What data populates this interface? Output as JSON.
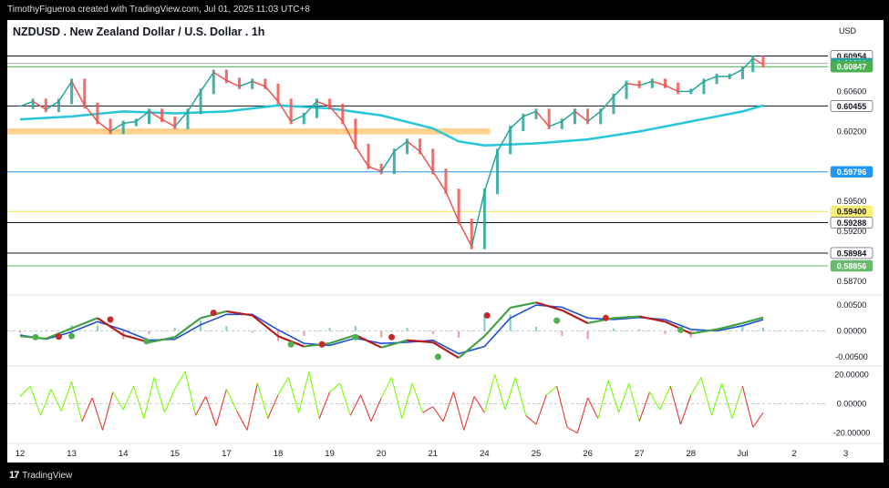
{
  "header": {
    "attribution": "TimothyFigueroa created with TradingView.com, Jul 01, 2025 11:03 UTC+8"
  },
  "footer": {
    "brand": "TradingView"
  },
  "chart_data": [
    {
      "type": "line",
      "title": "NZDUSD . New Zealand Dollar / U.S. Dollar . 1h",
      "currency": "USD",
      "x_ticks": [
        "12",
        "13",
        "14",
        "15",
        "17",
        "18",
        "19",
        "20",
        "21",
        "24",
        "25",
        "26",
        "27",
        "28",
        "Jul",
        "2",
        "3"
      ],
      "x_tick_pos": [
        0,
        1,
        2,
        3,
        4,
        5,
        6,
        7,
        8,
        9,
        10,
        11,
        12,
        13,
        14,
        15,
        16
      ],
      "ylim": [
        0.58574,
        0.61104
      ],
      "y_ticks": [
        "0.60600",
        "0.60200",
        "0.59500",
        "0.59200",
        "0.58700"
      ],
      "y_tick_values": [
        0.606,
        0.602,
        0.595,
        0.592,
        0.587
      ],
      "close_series": {
        "x": [
          0,
          0.25,
          0.5,
          0.75,
          1,
          1.25,
          1.5,
          1.75,
          2,
          2.25,
          2.5,
          2.75,
          3,
          3.25,
          3.5,
          3.75,
          4,
          4.25,
          4.5,
          4.75,
          5,
          5.25,
          5.5,
          5.75,
          6,
          6.25,
          6.5,
          6.75,
          7,
          7.25,
          7.5,
          7.75,
          8,
          8.25,
          8.5,
          8.75,
          9,
          9.25,
          9.5,
          9.75,
          10,
          10.25,
          10.5,
          10.75,
          11,
          11.25,
          11.5,
          11.75,
          12,
          12.25,
          12.5,
          12.75,
          13,
          13.25,
          13.5,
          13.75,
          14,
          14.2,
          14.4
        ],
        "y": [
          0.6045,
          0.605,
          0.6042,
          0.605,
          0.607,
          0.6046,
          0.603,
          0.602,
          0.6028,
          0.603,
          0.604,
          0.6032,
          0.6025,
          0.604,
          0.606,
          0.6079,
          0.6071,
          0.6065,
          0.607,
          0.6065,
          0.605,
          0.603,
          0.6036,
          0.605,
          0.6045,
          0.603,
          0.6005,
          0.5985,
          0.598,
          0.6,
          0.601,
          0.6,
          0.598,
          0.596,
          0.593,
          0.5905,
          0.596,
          0.6,
          0.6023,
          0.6035,
          0.604,
          0.6025,
          0.603,
          0.604,
          0.603,
          0.604,
          0.6055,
          0.6068,
          0.6066,
          0.607,
          0.6066,
          0.606,
          0.606,
          0.607,
          0.6075,
          0.6075,
          0.6082,
          0.6093,
          0.6087
        ]
      },
      "ma_series": {
        "x": [
          0,
          1,
          2,
          3,
          4,
          5,
          6,
          7,
          8,
          8.5,
          9,
          10,
          11,
          12,
          13,
          14,
          14.4
        ],
        "y": [
          0.6032,
          0.6035,
          0.604,
          0.6038,
          0.604,
          0.6046,
          0.6043,
          0.6036,
          0.6023,
          0.601,
          0.6006,
          0.6008,
          0.6012,
          0.602,
          0.603,
          0.604,
          0.6046
        ]
      },
      "support_zone": {
        "x": [
          0,
          9.1
        ],
        "y": [
          0.6017,
          0.6023
        ]
      },
      "price_levels": [
        {
          "label": "0.60954",
          "value": 0.60954,
          "line_color": "#131722",
          "badge_color": "#fff",
          "text_color": "#131722"
        },
        {
          "label": "0.60880",
          "value": 0.6088,
          "line_color": "#aaaaaa",
          "badge_color": "#26a69a",
          "text_color": "#fff"
        },
        {
          "label": "0.60847",
          "value": 0.60847,
          "line_color": "#4caf50",
          "badge_color": "#4caf50",
          "text_color": "#fff"
        },
        {
          "label": "0.60455",
          "value": 0.60455,
          "line_color": "#131722",
          "badge_color": "#fff",
          "text_color": "#131722"
        },
        {
          "label": "0.59796",
          "value": 0.59796,
          "line_color": "#2196f3",
          "badge_color": "#2196f3",
          "text_color": "#fff"
        },
        {
          "label": "0.59400",
          "value": 0.594,
          "line_color": "#f0e442",
          "badge_color": "#fff176",
          "text_color": "#131722"
        },
        {
          "label": "0.59288",
          "value": 0.59288,
          "line_color": "#131722",
          "badge_color": "#fff",
          "text_color": "#131722"
        },
        {
          "label": "0.58984",
          "value": 0.58984,
          "line_color": "#131722",
          "badge_color": "#fff",
          "text_color": "#131722"
        },
        {
          "label": "0.58856",
          "value": 0.58856,
          "line_color": "#66bb6a",
          "badge_color": "#66bb6a",
          "text_color": "#fff"
        }
      ]
    },
    {
      "type": "line",
      "ylim": [
        -0.0066,
        0.0066
      ],
      "y_ticks": [
        "0.00500",
        "0.00000",
        "-0.00500"
      ],
      "y_tick_values": [
        0.005,
        0,
        -0.005
      ],
      "fast_series": {
        "x": [
          0,
          0.5,
          1,
          1.5,
          2,
          2.5,
          3,
          3.5,
          4,
          4.5,
          5,
          5.5,
          6,
          6.5,
          7,
          7.5,
          8,
          8.5,
          9,
          9.5,
          10,
          10.5,
          11,
          11.5,
          12,
          12.5,
          13,
          13.5,
          14,
          14.4
        ],
        "y": [
          -0.001,
          -0.0015,
          0.0005,
          0.0025,
          -0.0008,
          -0.0022,
          -0.0012,
          0.0025,
          0.0038,
          0.003,
          -0.001,
          -0.003,
          -0.0024,
          -0.0008,
          -0.0032,
          -0.0018,
          -0.0022,
          -0.0052,
          -0.001,
          0.0045,
          0.0055,
          0.004,
          0.0015,
          0.0025,
          0.0028,
          0.0018,
          -0.0005,
          0.0003,
          0.0015,
          0.0026
        ]
      },
      "slow_series": {
        "x": [
          0,
          0.5,
          1,
          1.5,
          2,
          2.5,
          3,
          3.5,
          4,
          4.5,
          5,
          5.5,
          6,
          6.5,
          7,
          7.5,
          8,
          8.5,
          9,
          9.5,
          10,
          10.5,
          11,
          11.5,
          12,
          12.5,
          13,
          13.5,
          14,
          14.4
        ],
        "y": [
          -0.0008,
          -0.0016,
          -0.0002,
          0.0018,
          0.0002,
          -0.0018,
          -0.0016,
          0.0012,
          0.0032,
          0.0032,
          0.0002,
          -0.0024,
          -0.0028,
          -0.0014,
          -0.0024,
          -0.0022,
          -0.0018,
          -0.0044,
          -0.003,
          0.0025,
          0.005,
          0.0046,
          0.0025,
          0.0022,
          0.0026,
          0.0022,
          0.0003,
          0.0,
          0.001,
          0.0022
        ]
      },
      "cross_points": [
        {
          "x": 0.3,
          "y": -0.0012,
          "color": "#4caf50"
        },
        {
          "x": 0.75,
          "y": -0.0011,
          "color": "#c62828"
        },
        {
          "x": 1.0,
          "y": -0.001,
          "color": "#4caf50"
        },
        {
          "x": 1.75,
          "y": 0.0022,
          "color": "#c62828"
        },
        {
          "x": 2.45,
          "y": -0.002,
          "color": "#4caf50"
        },
        {
          "x": 3.75,
          "y": 0.0035,
          "color": "#c62828"
        },
        {
          "x": 5.25,
          "y": -0.0026,
          "color": "#4caf50"
        },
        {
          "x": 5.85,
          "y": -0.0026,
          "color": "#c62828"
        },
        {
          "x": 6.5,
          "y": -0.0012,
          "color": "#4caf50"
        },
        {
          "x": 7.2,
          "y": -0.0012,
          "color": "#c62828"
        },
        {
          "x": 8.1,
          "y": -0.005,
          "color": "#4caf50"
        },
        {
          "x": 9.05,
          "y": 0.003,
          "color": "#c62828"
        },
        {
          "x": 10.4,
          "y": 0.002,
          "color": "#4caf50"
        },
        {
          "x": 11.35,
          "y": 0.0025,
          "color": "#c62828"
        },
        {
          "x": 12.8,
          "y": 0.0002,
          "color": "#4caf50"
        }
      ]
    },
    {
      "type": "line",
      "ylim": [
        -0.00245,
        0.00245
      ],
      "y_ticks": [
        "20.00000",
        "0.00000",
        "-20.00000"
      ],
      "y_tick_values": [
        20,
        0,
        -20
      ],
      "scale": 10000,
      "oscillator": {
        "x": [
          0,
          0.2,
          0.4,
          0.6,
          0.8,
          1,
          1.2,
          1.4,
          1.6,
          1.8,
          2,
          2.2,
          2.4,
          2.6,
          2.8,
          3,
          3.2,
          3.4,
          3.6,
          3.8,
          4,
          4.2,
          4.4,
          4.6,
          4.8,
          5,
          5.2,
          5.4,
          5.6,
          5.8,
          6,
          6.2,
          6.4,
          6.6,
          6.8,
          7,
          7.2,
          7.4,
          7.6,
          7.8,
          8,
          8.2,
          8.4,
          8.6,
          8.8,
          9,
          9.2,
          9.4,
          9.6,
          9.8,
          10,
          10.2,
          10.4,
          10.6,
          10.8,
          11,
          11.2,
          11.4,
          11.6,
          11.8,
          12,
          12.2,
          12.4,
          12.6,
          12.8,
          13,
          13.2,
          13.4,
          13.6,
          13.8,
          14,
          14.2,
          14.4
        ],
        "y": [
          5,
          12,
          -8,
          10,
          -5,
          15,
          -12,
          4,
          -18,
          8,
          -4,
          12,
          -10,
          18,
          -6,
          10,
          22,
          -8,
          5,
          -15,
          10,
          -5,
          -18,
          14,
          -10,
          6,
          18,
          -6,
          22,
          -10,
          8,
          14,
          -8,
          6,
          -12,
          4,
          18,
          -10,
          14,
          -6,
          -2,
          -12,
          8,
          -18,
          5,
          -6,
          20,
          -4,
          18,
          -8,
          -14,
          6,
          12,
          -16,
          -20,
          4,
          -10,
          16,
          -6,
          14,
          -12,
          8,
          -4,
          12,
          -14,
          6,
          18,
          -8,
          14,
          -10,
          12,
          -16,
          -6
        ]
      }
    }
  ]
}
